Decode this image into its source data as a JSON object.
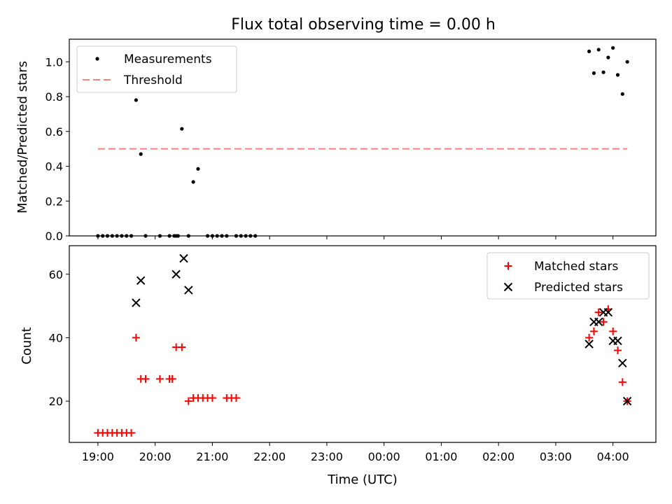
{
  "figure": {
    "title": "Flux total observing time = 0.00 h"
  },
  "chart_data": [
    {
      "type": "scatter",
      "title": "Flux total observing time = 0.00 h",
      "xlabel": "",
      "ylabel": "Matched/Predicted stars",
      "x_scale": "time",
      "xlim": [
        "18:30",
        "04:45"
      ],
      "ylim": [
        0,
        1.13
      ],
      "y_ticks": [
        "0.0",
        "0.2",
        "0.4",
        "0.6",
        "0.8",
        "1.0"
      ],
      "x_tick_labels_visible": false,
      "legend": {
        "position": "top-left",
        "entries": [
          "Measurements",
          "Threshold"
        ]
      },
      "series": [
        {
          "name": "Measurements",
          "marker": "dot",
          "color": "#000000",
          "points": [
            [
              "19:00",
              0.0
            ],
            [
              "19:05",
              0.0
            ],
            [
              "19:10",
              0.0
            ],
            [
              "19:15",
              0.0
            ],
            [
              "19:20",
              0.0
            ],
            [
              "19:25",
              0.0
            ],
            [
              "19:30",
              0.0
            ],
            [
              "19:35",
              0.0
            ],
            [
              "19:40",
              0.78
            ],
            [
              "19:45",
              0.47
            ],
            [
              "19:50",
              0.0
            ],
            [
              "20:05",
              0.0
            ],
            [
              "20:15",
              0.0
            ],
            [
              "20:20",
              0.0
            ],
            [
              "20:22",
              0.0
            ],
            [
              "20:24",
              0.0
            ],
            [
              "20:28",
              0.615
            ],
            [
              "20:35",
              0.0
            ],
            [
              "20:40",
              0.31
            ],
            [
              "20:45",
              0.385
            ],
            [
              "20:55",
              0.0
            ],
            [
              "21:00",
              0.0
            ],
            [
              "21:05",
              0.0
            ],
            [
              "21:10",
              0.0
            ],
            [
              "21:15",
              0.0
            ],
            [
              "21:25",
              0.0
            ],
            [
              "21:30",
              0.0
            ],
            [
              "21:35",
              0.0
            ],
            [
              "21:40",
              0.0
            ],
            [
              "21:45",
              0.0
            ],
            [
              "03:35",
              1.06
            ],
            [
              "03:40",
              0.935
            ],
            [
              "03:45",
              1.07
            ],
            [
              "03:50",
              0.94
            ],
            [
              "03:55",
              1.025
            ],
            [
              "04:00",
              1.08
            ],
            [
              "04:05",
              0.925
            ],
            [
              "04:10",
              0.815
            ],
            [
              "04:15",
              1.0
            ]
          ]
        },
        {
          "name": "Threshold",
          "line": "dashed",
          "color": "#ff7f7f",
          "points": [
            [
              "19:00",
              0.5
            ],
            [
              "04:15",
              0.5
            ]
          ]
        }
      ]
    },
    {
      "type": "scatter",
      "xlabel": "Time (UTC)",
      "ylabel": "Count",
      "x_scale": "time",
      "xlim": [
        "18:30",
        "04:45"
      ],
      "ylim": [
        7,
        69
      ],
      "y_ticks": [
        "20",
        "40",
        "60"
      ],
      "x_ticks": [
        "19:00",
        "20:00",
        "21:00",
        "22:00",
        "23:00",
        "00:00",
        "01:00",
        "02:00",
        "03:00",
        "04:00"
      ],
      "legend": {
        "position": "top-right",
        "entries": [
          "Matched stars",
          "Predicted stars"
        ]
      },
      "series": [
        {
          "name": "Matched stars",
          "marker": "plus",
          "color": "#ff0000",
          "points": [
            [
              "19:00",
              10
            ],
            [
              "19:05",
              10
            ],
            [
              "19:10",
              10
            ],
            [
              "19:15",
              10
            ],
            [
              "19:20",
              10
            ],
            [
              "19:25",
              10
            ],
            [
              "19:30",
              10
            ],
            [
              "19:35",
              10
            ],
            [
              "19:40",
              40
            ],
            [
              "19:45",
              27
            ],
            [
              "19:50",
              27
            ],
            [
              "20:05",
              27
            ],
            [
              "20:15",
              27
            ],
            [
              "20:18",
              27
            ],
            [
              "20:22",
              37
            ],
            [
              "20:28",
              37
            ],
            [
              "20:35",
              20
            ],
            [
              "20:40",
              21
            ],
            [
              "20:45",
              21
            ],
            [
              "20:50",
              21
            ],
            [
              "20:55",
              21
            ],
            [
              "21:00",
              21
            ],
            [
              "21:15",
              21
            ],
            [
              "21:20",
              21
            ],
            [
              "21:25",
              21
            ],
            [
              "03:35",
              40
            ],
            [
              "03:40",
              42
            ],
            [
              "03:45",
              48
            ],
            [
              "03:50",
              45
            ],
            [
              "03:55",
              49
            ],
            [
              "04:00",
              42
            ],
            [
              "04:05",
              36
            ],
            [
              "04:10",
              26
            ],
            [
              "04:15",
              20
            ]
          ]
        },
        {
          "name": "Predicted stars",
          "marker": "x",
          "color": "#000000",
          "points": [
            [
              "19:40",
              51
            ],
            [
              "19:45",
              58
            ],
            [
              "20:22",
              60
            ],
            [
              "20:30",
              65
            ],
            [
              "20:35",
              55
            ],
            [
              "03:35",
              38
            ],
            [
              "03:40",
              45
            ],
            [
              "03:45",
              45
            ],
            [
              "03:50",
              48
            ],
            [
              "03:55",
              48
            ],
            [
              "04:00",
              39
            ],
            [
              "04:05",
              39
            ],
            [
              "04:10",
              32
            ],
            [
              "04:15",
              20
            ]
          ]
        }
      ]
    }
  ]
}
